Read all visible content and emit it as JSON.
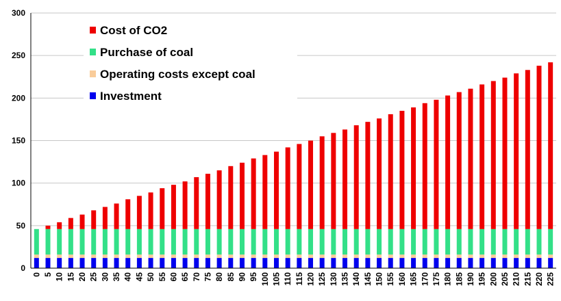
{
  "chart_data": {
    "type": "bar",
    "stacked": true,
    "title": "",
    "xlabel": "",
    "ylabel": "",
    "ylim": [
      0,
      300
    ],
    "yticks": [
      0,
      50,
      100,
      150,
      200,
      250,
      300
    ],
    "grid": true,
    "legend_position": "top-left",
    "categories": [
      "0",
      "5",
      "10",
      "15",
      "20",
      "25",
      "30",
      "35",
      "40",
      "45",
      "50",
      "55",
      "60",
      "65",
      "70",
      "75",
      "80",
      "85",
      "90",
      "95",
      "100",
      "105",
      "110",
      "115",
      "120",
      "125",
      "130",
      "135",
      "140",
      "145",
      "150",
      "155",
      "160",
      "165",
      "170",
      "175",
      "180",
      "185",
      "190",
      "195",
      "200",
      "205",
      "210",
      "215",
      "220",
      "225"
    ],
    "series": [
      {
        "name": "Investment",
        "color": "#0000ee",
        "values": [
          12,
          12,
          12,
          12,
          12,
          12,
          12,
          12,
          12,
          12,
          12,
          12,
          12,
          12,
          12,
          12,
          12,
          12,
          12,
          12,
          12,
          12,
          12,
          12,
          12,
          12,
          12,
          12,
          12,
          12,
          12,
          12,
          12,
          12,
          12,
          12,
          12,
          12,
          12,
          12,
          12,
          12,
          12,
          12,
          12,
          12
        ]
      },
      {
        "name": "Operating costs except coal",
        "color": "#f9cc9a",
        "values": [
          4,
          4,
          4,
          4,
          4,
          4,
          4,
          4,
          4,
          4,
          4,
          4,
          4,
          4,
          4,
          4,
          4,
          4,
          4,
          4,
          4,
          4,
          4,
          4,
          4,
          4,
          4,
          4,
          4,
          4,
          4,
          4,
          4,
          4,
          4,
          4,
          4,
          4,
          4,
          4,
          4,
          4,
          4,
          4,
          4,
          4
        ]
      },
      {
        "name": "Purchase of coal",
        "color": "#33e088",
        "values": [
          30,
          30,
          30,
          30,
          30,
          30,
          30,
          30,
          30,
          30,
          30,
          30,
          30,
          30,
          30,
          30,
          30,
          30,
          30,
          30,
          30,
          30,
          30,
          30,
          30,
          30,
          30,
          30,
          30,
          30,
          30,
          30,
          30,
          30,
          30,
          30,
          30,
          30,
          30,
          30,
          30,
          30,
          30,
          30,
          30,
          30
        ]
      },
      {
        "name": "Cost of CO2",
        "color": "#ee0000",
        "values": [
          0,
          4,
          8,
          13,
          17,
          22,
          26,
          30,
          35,
          39,
          43,
          48,
          52,
          56,
          61,
          65,
          69,
          74,
          78,
          83,
          87,
          91,
          96,
          100,
          104,
          109,
          113,
          117,
          122,
          126,
          130,
          135,
          139,
          143,
          148,
          152,
          157,
          161,
          165,
          170,
          174,
          178,
          183,
          187,
          192,
          196
        ]
      }
    ],
    "legend": [
      {
        "name": "Cost of CO2",
        "color": "#ee0000"
      },
      {
        "name": "Purchase of coal",
        "color": "#33e088"
      },
      {
        "name": "Operating costs except coal",
        "color": "#f9cc9a"
      },
      {
        "name": "Investment",
        "color": "#0000ee"
      }
    ]
  }
}
